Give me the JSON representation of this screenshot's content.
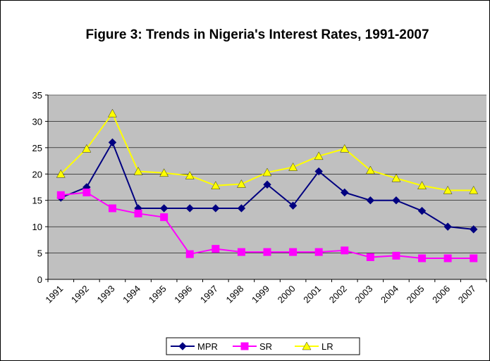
{
  "chart_data": {
    "type": "line",
    "title": "Figure 3: Trends in Nigeria's Interest Rates, 1991-2007",
    "categories": [
      "1991",
      "1992",
      "1993",
      "1994",
      "1995",
      "1996",
      "1997",
      "1998",
      "1999",
      "2000",
      "2001",
      "2002",
      "2003",
      "2004",
      "2005",
      "2006",
      "2007"
    ],
    "series": [
      {
        "name": "MPR",
        "color": "#000080",
        "marker": "diamond",
        "values": [
          15.5,
          17.5,
          26,
          13.5,
          13.5,
          13.5,
          13.5,
          13.5,
          18,
          14,
          20.5,
          16.5,
          15,
          15,
          13,
          10,
          9.5
        ]
      },
      {
        "name": "SR",
        "color": "#ff00ff",
        "marker": "square",
        "values": [
          16,
          16.5,
          13.5,
          12.5,
          11.8,
          4.8,
          5.8,
          5.2,
          5.2,
          5.2,
          5.2,
          5.5,
          4.2,
          4.5,
          4,
          4,
          4
        ]
      },
      {
        "name": "LR",
        "color": "#ffff00",
        "marker": "triangle",
        "values": [
          20,
          24.8,
          31.5,
          20.5,
          20.2,
          19.7,
          17.8,
          18.1,
          20.3,
          21.3,
          23.4,
          24.8,
          20.7,
          19.2,
          17.8,
          16.9,
          16.9
        ]
      }
    ],
    "ylim": [
      0,
      35
    ],
    "yticks": [
      0,
      5,
      10,
      15,
      20,
      25,
      30,
      35
    ],
    "grid": true,
    "legend": "bottom"
  }
}
